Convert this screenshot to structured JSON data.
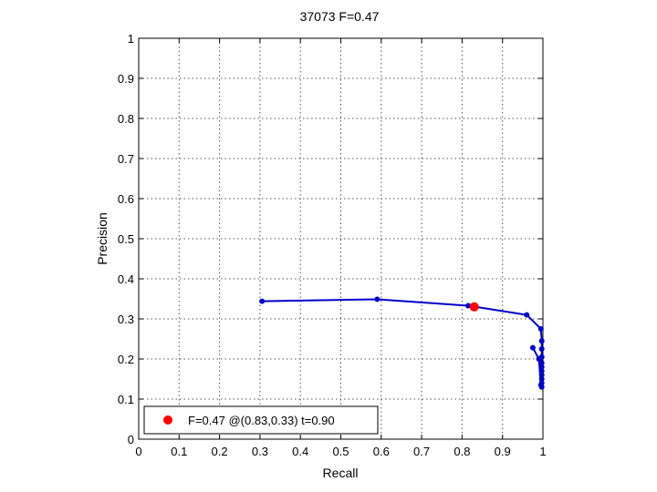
{
  "chart_data": {
    "type": "line",
    "title": "37073 F=0.47",
    "xlabel": "Recall",
    "ylabel": "Precision",
    "xlim": [
      0,
      1
    ],
    "ylim": [
      0,
      1
    ],
    "xticks": [
      "0",
      "0.1",
      "0.2",
      "0.3",
      "0.4",
      "0.5",
      "0.6",
      "0.7",
      "0.8",
      "0.9",
      "1"
    ],
    "yticks": [
      "0",
      "0.1",
      "0.2",
      "0.3",
      "0.4",
      "0.5",
      "0.6",
      "0.7",
      "0.8",
      "0.9",
      "1"
    ],
    "grid": true,
    "legend_position": "bottom-left",
    "series": [
      {
        "color": "#0000cc",
        "points": [
          [
            0.305,
            0.344
          ],
          [
            0.59,
            0.349
          ],
          [
            0.815,
            0.333
          ],
          [
            0.96,
            0.31
          ],
          [
            0.995,
            0.275
          ],
          [
            0.997,
            0.245
          ],
          [
            0.997,
            0.225
          ],
          [
            0.997,
            0.205
          ],
          [
            0.997,
            0.19
          ],
          [
            0.997,
            0.18
          ],
          [
            0.997,
            0.17
          ],
          [
            0.997,
            0.16
          ],
          [
            0.997,
            0.15
          ],
          [
            0.997,
            0.14
          ],
          [
            0.997,
            0.13
          ],
          [
            0.995,
            0.135
          ],
          [
            0.99,
            0.2
          ],
          [
            0.975,
            0.228
          ]
        ]
      }
    ],
    "best_point": {
      "x": 0.83,
      "y": 0.33,
      "color": "#ff0000"
    },
    "legend": {
      "label": "F=0.47 @(0.83,0.33) t=0.90"
    }
  }
}
